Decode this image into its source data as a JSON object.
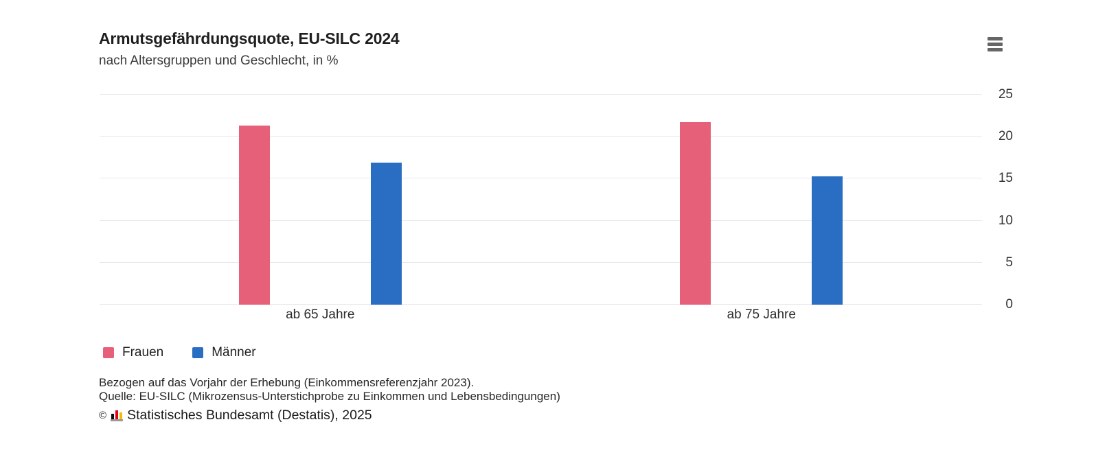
{
  "header": {
    "title": "Armutsgefährdungsquote, EU-SILC 2024",
    "subtitle": "nach Altersgruppen und Geschlecht, in %"
  },
  "chart_data": {
    "type": "bar",
    "title": "Armutsgefährdungsquote, EU-SILC 2024",
    "subtitle": "nach Altersgruppen und Geschlecht, in %",
    "categories": [
      "ab 65 Jahre",
      "ab 75 Jahre"
    ],
    "series": [
      {
        "name": "Frauen",
        "color": "#e56078",
        "values": [
          21.3,
          21.7
        ]
      },
      {
        "name": "Männer",
        "color": "#2a6ec4",
        "values": [
          16.9,
          15.3
        ]
      }
    ],
    "xlabel": "",
    "ylabel": "",
    "ylim": [
      0,
      25
    ],
    "yticks": [
      0,
      5,
      10,
      15,
      20,
      25
    ],
    "y_axis_side": "right",
    "grid": true,
    "legend_position": "bottom-left"
  },
  "footer": {
    "footnote1": "Bezogen auf das Vorjahr der Erhebung (Einkommensreferenzjahr 2023).",
    "footnote2": "Quelle: EU-SILC (Mikrozensus-Unterstichprobe zu Einkommen und Lebensbedingungen)",
    "copyright": "©",
    "credits": "Statistisches Bundesamt (Destatis), 2025"
  },
  "colors": {
    "frauen": "#e56078",
    "maenner": "#2a6ec4",
    "grid": "#e8e8e8",
    "menu_icon": "#666666",
    "logo_black": "#0f0f0f",
    "logo_red": "#e2001a",
    "logo_gold": "#f5bb00"
  }
}
